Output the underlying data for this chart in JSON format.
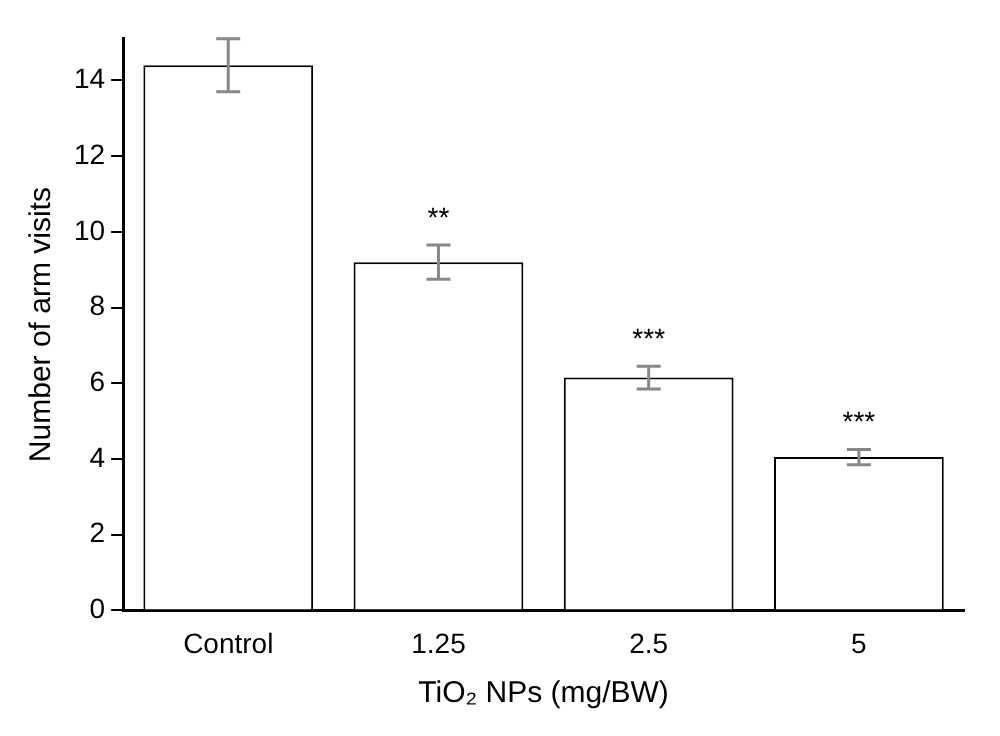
{
  "chart_data": {
    "type": "bar",
    "xlabel": "TiO₂ NPs (mg/BW)",
    "ylabel": "Number of arm visits",
    "categories": [
      "Control",
      "1.25",
      "2.5",
      "5"
    ],
    "series": [
      {
        "color": "#ffffff",
        "values": [
          14.4,
          9.2,
          6.15,
          4.05
        ],
        "errors": [
          0.7,
          0.45,
          0.3,
          0.2
        ]
      }
    ],
    "ylim": [
      0,
      15.1
    ],
    "yticks": [
      0,
      2,
      4,
      6,
      8,
      10,
      12,
      14
    ],
    "grid": false,
    "legend": false,
    "annotations": [
      {
        "text": "**",
        "x": "1.25",
        "y": 9.65
      },
      {
        "text": "***",
        "x": "2.5",
        "y": 6.45
      },
      {
        "text": "***",
        "x": "5",
        "y": 4.25
      }
    ]
  }
}
